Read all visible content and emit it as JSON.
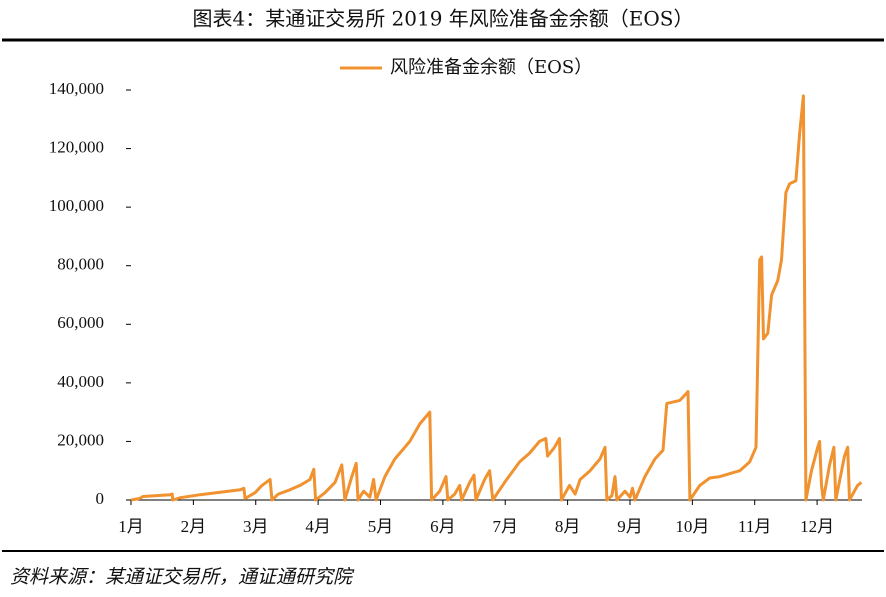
{
  "chart_data": {
    "type": "line",
    "title": "图表4：某通证交易所 2019 年风险准备金余额（EOS）",
    "source": "资料来源：某通证交易所，通证通研究院",
    "legend": "top",
    "xlim": [
      1,
      12.72
    ],
    "xticks": [
      {
        "value": 1,
        "label": "1月"
      },
      {
        "value": 2,
        "label": "2月"
      },
      {
        "value": 3,
        "label": "3月"
      },
      {
        "value": 4,
        "label": "4月"
      },
      {
        "value": 5,
        "label": "5月"
      },
      {
        "value": 6,
        "label": "6月"
      },
      {
        "value": 7,
        "label": "7月"
      },
      {
        "value": 8,
        "label": "8月"
      },
      {
        "value": 9,
        "label": "9月"
      },
      {
        "value": 10,
        "label": "10月"
      },
      {
        "value": 11,
        "label": "11月"
      },
      {
        "value": 12,
        "label": "12月"
      }
    ],
    "ylim": [
      0,
      140000
    ],
    "yticks": [
      0,
      {
        "value": 20000,
        "label": "20,000"
      },
      {
        "value": 40000,
        "label": "40,000"
      },
      {
        "value": 60000,
        "label": "60,000"
      },
      {
        "value": 80000,
        "label": "80,000"
      },
      {
        "value": 100000,
        "label": "100,000"
      },
      {
        "value": 120000,
        "label": "120,000"
      },
      {
        "value": 140000,
        "label": "140,000"
      }
    ],
    "series": [
      {
        "name": "风险准备金余额（EOS）",
        "color": "#f0922f",
        "x": [
          1.0,
          1.14,
          1.19,
          1.63,
          1.66,
          1.67,
          1.79,
          2.11,
          2.75,
          2.81,
          2.83,
          2.99,
          3.1,
          3.23,
          3.26,
          3.36,
          3.55,
          3.71,
          3.87,
          3.93,
          3.96,
          4.11,
          4.27,
          4.38,
          4.43,
          4.54,
          4.61,
          4.64,
          4.73,
          4.83,
          4.89,
          4.93,
          5.07,
          5.23,
          5.39,
          5.47,
          5.63,
          5.79,
          5.82,
          5.95,
          6.05,
          6.08,
          6.19,
          6.27,
          6.3,
          6.43,
          6.5,
          6.53,
          6.67,
          6.75,
          6.8,
          6.99,
          7.23,
          7.39,
          7.55,
          7.65,
          7.68,
          7.79,
          7.87,
          7.9,
          8.03,
          8.12,
          8.2,
          8.36,
          8.44,
          8.52,
          8.6,
          8.63,
          8.71,
          8.76,
          8.79,
          8.92,
          9.0,
          9.04,
          9.08,
          9.24,
          9.4,
          9.53,
          9.59,
          9.8,
          9.93,
          9.96,
          10.12,
          10.28,
          10.44,
          10.76,
          10.92,
          11.02,
          11.08,
          11.11,
          11.14,
          11.21,
          11.27,
          11.37,
          11.43,
          11.5,
          11.56,
          11.66,
          11.72,
          11.78,
          11.82,
          11.91,
          12.01,
          12.04,
          12.07,
          12.1,
          12.2,
          12.27,
          12.3,
          12.44,
          12.49,
          12.52,
          12.65,
          12.71
        ],
        "values": [
          0,
          500,
          1200,
          1800,
          2000,
          0,
          800,
          1800,
          3500,
          4000,
          500,
          2500,
          5000,
          7000,
          0,
          2000,
          3500,
          5000,
          7000,
          10500,
          0,
          2500,
          6000,
          12000,
          0,
          8000,
          12500,
          0,
          3000,
          1000,
          7000,
          0,
          8000,
          14000,
          18000,
          20000,
          26000,
          30000,
          0,
          3000,
          8000,
          0,
          2000,
          5000,
          0,
          6000,
          8500,
          0,
          7000,
          10000,
          0,
          6000,
          13000,
          16000,
          20000,
          21000,
          15000,
          18000,
          21000,
          0,
          5000,
          2000,
          7000,
          10000,
          12000,
          14000,
          18000,
          0,
          1500,
          8000,
          0,
          3000,
          1000,
          4000,
          0,
          8000,
          14000,
          17000,
          33000,
          34000,
          37000,
          0,
          5000,
          7500,
          8000,
          10000,
          13000,
          18000,
          82000,
          83000,
          55000,
          57000,
          70000,
          75000,
          82000,
          105000,
          108000,
          109000,
          125000,
          138000,
          0,
          10000,
          18000,
          20000,
          5000,
          0,
          12000,
          18000,
          0,
          15000,
          18000,
          0,
          5000,
          6000
        ]
      }
    ]
  }
}
